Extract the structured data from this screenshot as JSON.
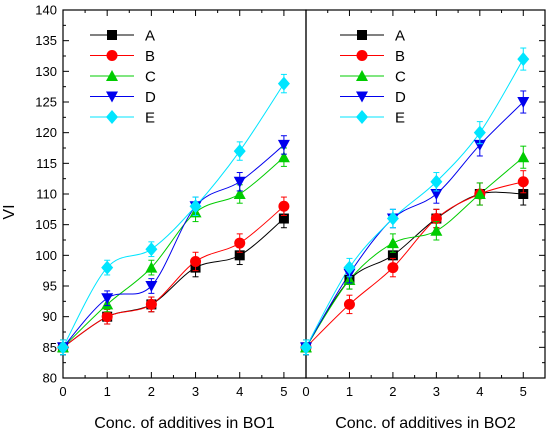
{
  "chart_data": {
    "type": "line",
    "ylabel": "VI",
    "ylim": [
      80,
      140
    ],
    "yticks": [
      "80",
      "85",
      "90",
      "95",
      "100",
      "105",
      "110",
      "115",
      "120",
      "125",
      "130",
      "135",
      "140"
    ],
    "xlim": [
      0,
      5.5
    ],
    "xticks": [
      "0",
      "1",
      "2",
      "3",
      "4",
      "5"
    ],
    "grid": false,
    "legend": "top-left",
    "colors": {
      "A": "#000000",
      "B": "#ff0000",
      "C": "#00cc00",
      "D": "#0000ee",
      "E": "#00e5ff"
    },
    "markers": {
      "A": "square",
      "B": "circle",
      "C": "triangle-up",
      "D": "triangle-down",
      "E": "diamond"
    },
    "panels": [
      {
        "xlabel": "Conc. of additives in BO1",
        "x": [
          0,
          1,
          2,
          3,
          4,
          5
        ],
        "series": [
          {
            "name": "A",
            "values": [
              85,
              90,
              92,
              98,
              100,
              106
            ],
            "errors": [
              1.2,
              1.2,
              1.2,
              1.5,
              1.5,
              1.5
            ]
          },
          {
            "name": "B",
            "values": [
              85,
              90,
              92,
              99,
              102,
              108
            ],
            "errors": [
              1.2,
              1.2,
              1.2,
              1.5,
              1.5,
              1.5
            ]
          },
          {
            "name": "C",
            "values": [
              85,
              92,
              98,
              107,
              110,
              116
            ],
            "errors": [
              1.2,
              1.2,
              1.2,
              1.5,
              1.5,
              1.5
            ]
          },
          {
            "name": "D",
            "values": [
              85,
              93,
              95,
              108,
              112,
              118
            ],
            "errors": [
              1.2,
              1.2,
              1.2,
              1.5,
              1.5,
              1.5
            ]
          },
          {
            "name": "E",
            "values": [
              85,
              98,
              101,
              108,
              117,
              128
            ],
            "errors": [
              1.2,
              1.2,
              1.2,
              1.5,
              1.5,
              1.5
            ]
          }
        ]
      },
      {
        "xlabel": "Conc. of additives in BO2",
        "x": [
          0,
          1,
          2,
          3,
          4,
          5
        ],
        "series": [
          {
            "name": "A",
            "values": [
              85,
              96,
              100,
              106,
              110,
              110
            ],
            "errors": [
              1.2,
              1.5,
              1.5,
              1.5,
              1.8,
              1.8
            ]
          },
          {
            "name": "B",
            "values": [
              85,
              92,
              98,
              106,
              110,
              112
            ],
            "errors": [
              1.2,
              1.5,
              1.5,
              1.5,
              1.8,
              1.8
            ]
          },
          {
            "name": "C",
            "values": [
              85,
              96,
              102,
              104,
              110,
              116
            ],
            "errors": [
              1.2,
              1.5,
              1.5,
              1.5,
              1.8,
              1.8
            ]
          },
          {
            "name": "D",
            "values": [
              85,
              97,
              106,
              110,
              118,
              125
            ],
            "errors": [
              1.2,
              1.5,
              1.5,
              1.5,
              1.8,
              1.8
            ]
          },
          {
            "name": "E",
            "values": [
              85,
              98,
              106,
              112,
              120,
              132
            ],
            "errors": [
              1.2,
              1.5,
              1.5,
              1.5,
              1.8,
              1.8
            ]
          }
        ]
      }
    ]
  }
}
